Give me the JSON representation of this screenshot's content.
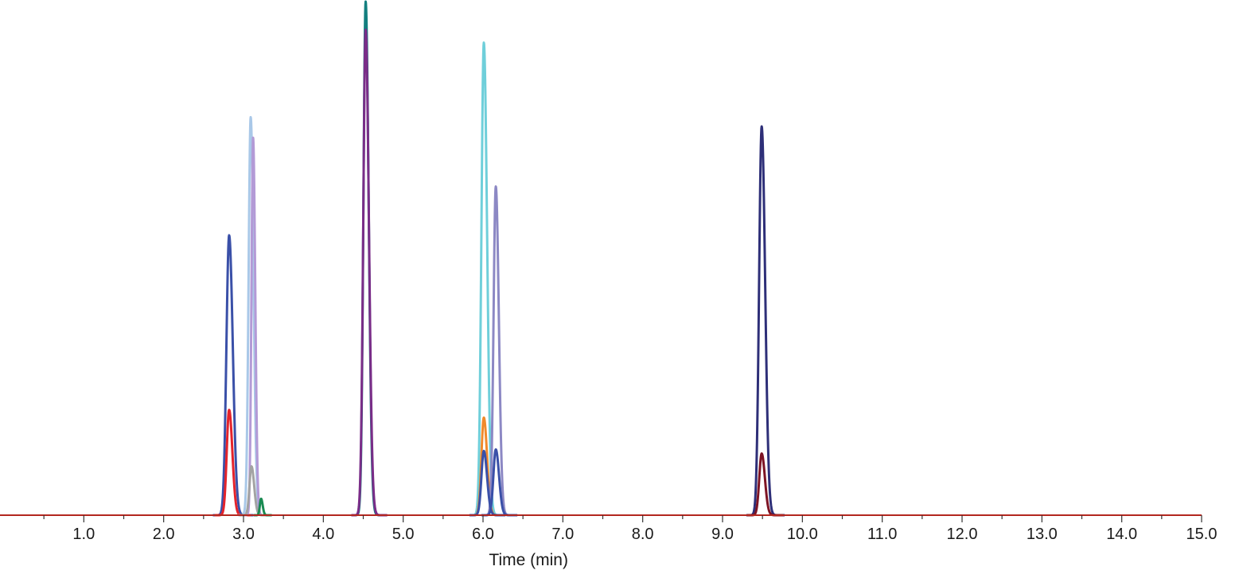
{
  "chart_data": {
    "type": "line",
    "title": "",
    "xlabel": "Time (min)",
    "ylabel": "",
    "xlim": [
      0,
      15
    ],
    "ylim": [
      0,
      100
    ],
    "grid": false,
    "legend": "none",
    "axis_color": "#b3271f",
    "x_ticks": [
      "1.0",
      "2.0",
      "3.0",
      "4.0",
      "5.0",
      "6.0",
      "7.0",
      "8.0",
      "9.0",
      "10.0",
      "11.0",
      "12.0",
      "13.0",
      "14.0",
      "15.0"
    ],
    "series": [
      {
        "color": "#3a50a8",
        "peaks": [
          {
            "rt": 2.82,
            "height": 54.5,
            "width": 0.034
          }
        ]
      },
      {
        "color": "#e4232b",
        "peaks": [
          {
            "rt": 2.82,
            "height": 20.5,
            "width": 0.03
          }
        ]
      },
      {
        "color": "#a9c8e8",
        "peaks": [
          {
            "rt": 3.09,
            "height": 77.5,
            "width": 0.026
          }
        ]
      },
      {
        "color": "#b39ad6",
        "peaks": [
          {
            "rt": 3.12,
            "height": 73.5,
            "width": 0.02
          }
        ]
      },
      {
        "color": "#a3a3a3",
        "peaks": [
          {
            "rt": 3.1,
            "height": 9.5,
            "width": 0.025
          }
        ]
      },
      {
        "color": "#1a8a52",
        "peaks": [
          {
            "rt": 3.22,
            "height": 3.2,
            "width": 0.015
          }
        ]
      },
      {
        "color": "#137f7f",
        "peaks": [
          {
            "rt": 4.53,
            "height": 100,
            "width": 0.028
          }
        ]
      },
      {
        "color": "#7a2d88",
        "peaks": [
          {
            "rt": 4.53,
            "height": 94.5,
            "width": 0.03
          }
        ]
      },
      {
        "color": "#6fcfda",
        "peaks": [
          {
            "rt": 6.01,
            "height": 92,
            "width": 0.03
          }
        ]
      },
      {
        "color": "#f08a2c",
        "peaks": [
          {
            "rt": 6.01,
            "height": 19,
            "width": 0.03
          }
        ]
      },
      {
        "color": "#8c88c4",
        "peaks": [
          {
            "rt": 6.16,
            "height": 64,
            "width": 0.028
          }
        ]
      },
      {
        "color": "#3a50a8",
        "peaks": [
          {
            "rt": 6.01,
            "height": 12.5,
            "width": 0.03
          },
          {
            "rt": 6.16,
            "height": 12.8,
            "width": 0.03
          }
        ]
      },
      {
        "color": "#2e2f78",
        "peaks": [
          {
            "rt": 9.49,
            "height": 75.7,
            "width": 0.032
          }
        ]
      },
      {
        "color": "#7d1424",
        "peaks": [
          {
            "rt": 9.49,
            "height": 12,
            "width": 0.03
          }
        ]
      }
    ]
  }
}
